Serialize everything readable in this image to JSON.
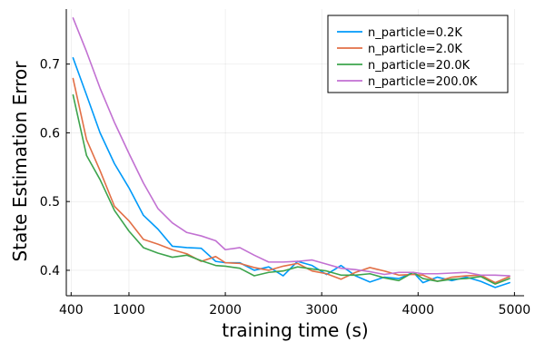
{
  "chart_data": {
    "type": "line",
    "title": "",
    "xlabel": "training time (s)",
    "ylabel": "State Estimation Error",
    "xlim": [
      350,
      5100
    ],
    "ylim": [
      0.363,
      0.78
    ],
    "xticks": [
      400,
      1000,
      2000,
      3000,
      4000,
      5000
    ],
    "yticks": [
      0.4,
      0.5,
      0.6,
      0.7
    ],
    "ytick_labels": [
      "0.4",
      "0.5",
      "0.6",
      "0.7"
    ],
    "grid": true,
    "legend_position": "top-right",
    "series": [
      {
        "name": "n_particle=0.2K",
        "color": "#009af9",
        "points": [
          [
            420,
            0.709
          ],
          [
            560,
            0.655
          ],
          [
            700,
            0.6
          ],
          [
            850,
            0.555
          ],
          [
            1000,
            0.52
          ],
          [
            1150,
            0.48
          ],
          [
            1300,
            0.46
          ],
          [
            1450,
            0.435
          ],
          [
            1600,
            0.433
          ],
          [
            1750,
            0.432
          ],
          [
            1900,
            0.413
          ],
          [
            2000,
            0.411
          ],
          [
            2150,
            0.411
          ],
          [
            2300,
            0.4
          ],
          [
            2450,
            0.405
          ],
          [
            2600,
            0.392
          ],
          [
            2750,
            0.413
          ],
          [
            2900,
            0.407
          ],
          [
            3050,
            0.394
          ],
          [
            3200,
            0.407
          ],
          [
            3350,
            0.392
          ],
          [
            3500,
            0.383
          ],
          [
            3650,
            0.39
          ],
          [
            3800,
            0.388
          ],
          [
            3950,
            0.397
          ],
          [
            4050,
            0.382
          ],
          [
            4200,
            0.39
          ],
          [
            4350,
            0.385
          ],
          [
            4500,
            0.39
          ],
          [
            4650,
            0.384
          ],
          [
            4800,
            0.375
          ],
          [
            4950,
            0.382
          ]
        ]
      },
      {
        "name": "n_particle=2.0K",
        "color": "#e26f46",
        "points": [
          [
            420,
            0.679
          ],
          [
            560,
            0.59
          ],
          [
            700,
            0.545
          ],
          [
            850,
            0.493
          ],
          [
            1000,
            0.472
          ],
          [
            1150,
            0.445
          ],
          [
            1300,
            0.438
          ],
          [
            1450,
            0.43
          ],
          [
            1600,
            0.424
          ],
          [
            1750,
            0.413
          ],
          [
            1900,
            0.42
          ],
          [
            2000,
            0.411
          ],
          [
            2150,
            0.41
          ],
          [
            2300,
            0.404
          ],
          [
            2450,
            0.4
          ],
          [
            2600,
            0.406
          ],
          [
            2750,
            0.41
          ],
          [
            2900,
            0.399
          ],
          [
            3050,
            0.395
          ],
          [
            3200,
            0.387
          ],
          [
            3350,
            0.397
          ],
          [
            3500,
            0.404
          ],
          [
            3650,
            0.399
          ],
          [
            3800,
            0.393
          ],
          [
            3950,
            0.394
          ],
          [
            4050,
            0.393
          ],
          [
            4200,
            0.384
          ],
          [
            4350,
            0.39
          ],
          [
            4500,
            0.392
          ],
          [
            4650,
            0.393
          ],
          [
            4800,
            0.382
          ],
          [
            4950,
            0.391
          ]
        ]
      },
      {
        "name": "n_particle=20.0K",
        "color": "#3da44d",
        "points": [
          [
            420,
            0.655
          ],
          [
            560,
            0.567
          ],
          [
            700,
            0.532
          ],
          [
            850,
            0.487
          ],
          [
            1000,
            0.457
          ],
          [
            1150,
            0.433
          ],
          [
            1300,
            0.425
          ],
          [
            1450,
            0.419
          ],
          [
            1600,
            0.422
          ],
          [
            1750,
            0.414
          ],
          [
            1900,
            0.407
          ],
          [
            2000,
            0.406
          ],
          [
            2150,
            0.403
          ],
          [
            2300,
            0.392
          ],
          [
            2450,
            0.397
          ],
          [
            2600,
            0.399
          ],
          [
            2750,
            0.405
          ],
          [
            2900,
            0.402
          ],
          [
            3050,
            0.399
          ],
          [
            3200,
            0.393
          ],
          [
            3350,
            0.393
          ],
          [
            3500,
            0.395
          ],
          [
            3650,
            0.389
          ],
          [
            3800,
            0.385
          ],
          [
            3950,
            0.397
          ],
          [
            4050,
            0.388
          ],
          [
            4200,
            0.384
          ],
          [
            4350,
            0.387
          ],
          [
            4500,
            0.388
          ],
          [
            4650,
            0.391
          ],
          [
            4800,
            0.38
          ],
          [
            4950,
            0.388
          ]
        ]
      },
      {
        "name": "n_particle=200.0K",
        "color": "#c271d2",
        "points": [
          [
            420,
            0.767
          ],
          [
            560,
            0.718
          ],
          [
            700,
            0.665
          ],
          [
            850,
            0.615
          ],
          [
            1000,
            0.57
          ],
          [
            1150,
            0.527
          ],
          [
            1300,
            0.49
          ],
          [
            1450,
            0.469
          ],
          [
            1600,
            0.455
          ],
          [
            1750,
            0.45
          ],
          [
            1900,
            0.443
          ],
          [
            2000,
            0.43
          ],
          [
            2150,
            0.433
          ],
          [
            2300,
            0.422
          ],
          [
            2450,
            0.412
          ],
          [
            2600,
            0.412
          ],
          [
            2750,
            0.413
          ],
          [
            2900,
            0.415
          ],
          [
            3050,
            0.409
          ],
          [
            3200,
            0.403
          ],
          [
            3350,
            0.401
          ],
          [
            3500,
            0.398
          ],
          [
            3650,
            0.394
          ],
          [
            3800,
            0.397
          ],
          [
            3950,
            0.397
          ],
          [
            4050,
            0.395
          ],
          [
            4200,
            0.395
          ],
          [
            4350,
            0.396
          ],
          [
            4500,
            0.397
          ],
          [
            4650,
            0.393
          ],
          [
            4800,
            0.393
          ],
          [
            4950,
            0.392
          ]
        ]
      }
    ]
  }
}
